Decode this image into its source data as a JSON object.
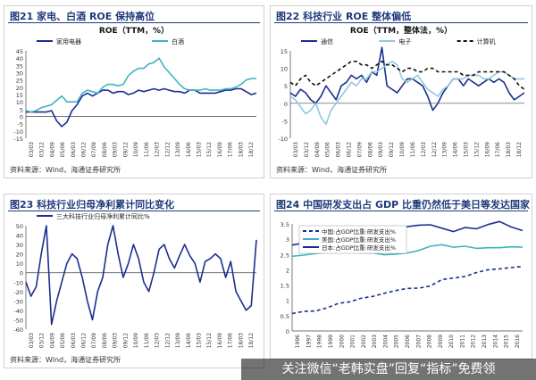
{
  "footer": "关注微信“老韩实盘”回复“指标”免费领",
  "panels": [
    {
      "title": "图21 家电、白酒 ROE 保持高位",
      "source": "资料来源：Wind，海通证券研究所",
      "chart_data": {
        "type": "line",
        "title": "ROE（TTM，%）",
        "ylim": [
          -15,
          45
        ],
        "yticks": [
          -15,
          -10,
          -5,
          0,
          5,
          10,
          15,
          20,
          25,
          30,
          35,
          40,
          45
        ],
        "xticks": [
          "03/03",
          "03/12",
          "04/09",
          "05/06",
          "06/03",
          "06/12",
          "07/09",
          "08/06",
          "09/03",
          "09/12",
          "10/09",
          "11/06",
          "12/03",
          "12/12",
          "13/09",
          "14/06",
          "15/03",
          "15/12",
          "16/09",
          "17/06",
          "18/03",
          "18/12"
        ],
        "legend": "top",
        "series": [
          {
            "name": "家用电器",
            "color": "#1a2f8f",
            "dash": "",
            "values": [
              3,
              3,
              3,
              3,
              3,
              4,
              -3,
              -7,
              -4,
              4,
              8,
              14,
              16,
              14,
              16,
              18,
              18,
              16,
              17,
              17,
              15,
              16,
              18,
              17,
              18,
              19,
              18,
              19,
              18,
              17,
              17,
              16,
              18,
              18,
              16,
              16,
              16,
              16,
              17,
              18,
              18,
              19,
              19,
              17,
              15,
              16
            ]
          },
          {
            "name": "白酒",
            "color": "#3fb3c2",
            "dash": "",
            "values": [
              4,
              3,
              4,
              6,
              7,
              8,
              11,
              14,
              10,
              10,
              10,
              16,
              18,
              17,
              16,
              20,
              22,
              22,
              21,
              22,
              28,
              31,
              33,
              33,
              36,
              37,
              40,
              34,
              30,
              26,
              22,
              19,
              18,
              18,
              18,
              19,
              18,
              18,
              18,
              19,
              19,
              20,
              22,
              25,
              26,
              26
            ]
          }
        ]
      }
    },
    {
      "title": "图22 科技行业 ROE 整体偏低",
      "source": "资料来源：Wind，海通证券研究所",
      "chart_data": {
        "type": "line",
        "title": "ROE（TTM，整体法，%）",
        "ylim": [
          -10,
          15
        ],
        "yticks": [
          -10,
          -5,
          0,
          5,
          10,
          15
        ],
        "xticks": [
          "03/03",
          "03/12",
          "04/09",
          "05/06",
          "06/03",
          "06/12",
          "07/09",
          "08/06",
          "09/03",
          "09/12",
          "10/09",
          "11/06",
          "12/03",
          "12/12",
          "13/09",
          "14/06",
          "15/03",
          "15/12",
          "16/09",
          "17/06",
          "18/03",
          "18/12"
        ],
        "legend": "top",
        "series": [
          {
            "name": "通信",
            "color": "#1a2f8f",
            "dash": "",
            "values": [
              3,
              2,
              4,
              3,
              1,
              0,
              2,
              5,
              3,
              1,
              5,
              6,
              8,
              7,
              8,
              6,
              9,
              8,
              16,
              5,
              4,
              3,
              5,
              7,
              7,
              6,
              5,
              2,
              -2,
              0,
              3,
              5,
              7,
              7,
              5,
              7,
              6,
              5,
              6,
              7,
              6,
              7,
              6,
              3,
              1,
              2,
              3
            ]
          },
          {
            "name": "电子",
            "color": "#8fc9e0",
            "dash": "",
            "values": [
              2,
              1,
              -1,
              -3,
              -2,
              0,
              -4,
              -6,
              -2,
              0,
              2,
              4,
              6,
              5,
              7,
              7,
              9,
              9,
              10,
              11,
              12,
              11,
              7,
              6,
              7,
              8,
              6,
              4,
              3,
              2,
              4,
              5,
              7,
              7,
              7,
              8,
              8,
              8,
              7,
              7,
              8,
              9,
              9,
              8,
              7,
              7,
              7
            ]
          },
          {
            "name": "计算机",
            "color": "#111111",
            "dash": "4,3",
            "values": [
              6,
              5,
              7,
              8,
              6,
              5,
              6,
              7,
              8,
              9,
              10,
              11,
              12,
              12,
              11,
              11,
              10,
              11,
              12,
              11,
              11,
              10,
              9,
              10,
              10,
              9,
              9,
              10,
              10,
              9,
              9,
              9,
              9,
              9,
              8,
              8,
              8,
              9,
              9,
              9,
              9,
              9,
              9,
              8,
              7,
              5,
              4
            ]
          }
        ]
      }
    },
    {
      "title": "图23 科技行业归母净利累计同比变化",
      "source": "资料来源：Wind，海通证券研究所",
      "chart_data": {
        "type": "line",
        "title": "",
        "ylim": [
          -60,
          50
        ],
        "yticks": [
          -60,
          -50,
          -40,
          -30,
          -20,
          -10,
          0,
          10,
          20,
          30,
          40,
          50
        ],
        "xticks": [
          "03/03",
          "03/12",
          "04/09",
          "05/06",
          "06/03",
          "06/12",
          "07/09",
          "08/06",
          "09/03",
          "09/12",
          "10/09",
          "11/06",
          "12/03",
          "12/12",
          "13/09",
          "14/06",
          "15/03",
          "15/12",
          "16/09",
          "17/06",
          "18/03",
          "18/12"
        ],
        "legend": "top",
        "series": [
          {
            "name": "三大科技行业归母净利累计同比%",
            "color": "#1a2f8f",
            "dash": "",
            "values": [
              -10,
              -25,
              -15,
              20,
              50,
              -55,
              -30,
              -10,
              10,
              20,
              15,
              -5,
              -30,
              -50,
              -20,
              -5,
              30,
              50,
              20,
              -5,
              10,
              30,
              15,
              -10,
              -20,
              0,
              25,
              30,
              15,
              5,
              18,
              30,
              18,
              10,
              -10,
              12,
              15,
              20,
              15,
              -5,
              12,
              -20,
              -30,
              -40,
              -35,
              35
            ]
          }
        ]
      }
    },
    {
      "title": "图24 中国研发支出占 GDP 比重仍然低于美日等发达国家",
      "source": "资料来源：Wind，海通证券研究所",
      "chart_data": {
        "type": "line",
        "title": "",
        "ylim": [
          0,
          3.5
        ],
        "yticks": [
          0,
          0.5,
          1,
          1.5,
          2,
          2.5,
          3,
          3.5
        ],
        "xticks": [
          "1996",
          "1997",
          "1998",
          "1999",
          "2000",
          "2001",
          "2002",
          "2003",
          "2004",
          "2005",
          "2006",
          "2007",
          "2008",
          "2009",
          "2010",
          "2011",
          "2012",
          "2013",
          "2014",
          "2015",
          "2016"
        ],
        "legend": "top-left",
        "series": [
          {
            "name": "中国:占GDP比重:研发支出%",
            "color": "#1a2f8f",
            "dash": "4,3",
            "values": [
              0.57,
              0.64,
              0.65,
              0.75,
              0.9,
              0.95,
              1.07,
              1.13,
              1.23,
              1.32,
              1.39,
              1.4,
              1.47,
              1.68,
              1.73,
              1.78,
              1.91,
              2.0,
              2.03,
              2.07,
              2.11
            ]
          },
          {
            "name": "美国:占GDP比重:研发支出%",
            "color": "#3fb3c2",
            "dash": "",
            "values": [
              2.44,
              2.48,
              2.53,
              2.57,
              2.62,
              2.64,
              2.55,
              2.55,
              2.49,
              2.51,
              2.55,
              2.63,
              2.77,
              2.82,
              2.74,
              2.77,
              2.7,
              2.72,
              2.72,
              2.75,
              2.74
            ]
          },
          {
            "name": "日本:占GDP比重:研发支出%",
            "color": "#1a2f8f",
            "dash": "",
            "values": [
              2.81,
              2.87,
              3.0,
              3.02,
              3.0,
              3.07,
              3.12,
              3.14,
              3.13,
              3.31,
              3.41,
              3.46,
              3.47,
              3.36,
              3.25,
              3.38,
              3.34,
              3.48,
              3.58,
              3.4,
              3.28
            ]
          }
        ]
      }
    }
  ]
}
